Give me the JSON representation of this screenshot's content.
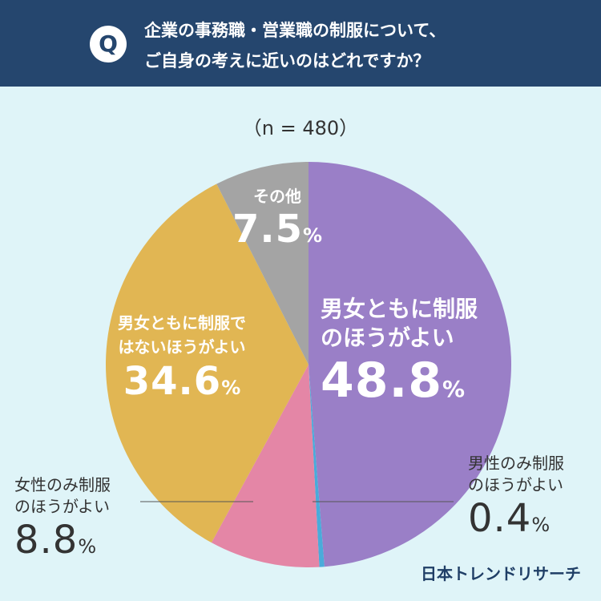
{
  "question": {
    "badge": "Q",
    "line1": "企業の事務職・営業職の制服について、",
    "line2": "ご自身の考えに近いのはどれですか？"
  },
  "sample": "（n = 480）",
  "brand": "日本トレンドリサーチ",
  "chart_data": {
    "type": "pie",
    "n": 480,
    "start": "top",
    "direction": "clockwise",
    "slices": [
      {
        "label": "男女ともに制服のほうがよい",
        "value": 48.8,
        "color": "#9a7fc7"
      },
      {
        "label": "男性のみ制服のほうがよい",
        "value": 0.4,
        "color": "#4aabda"
      },
      {
        "label": "女性のみ制服のほうがよい",
        "value": 8.8,
        "color": "#e486a6"
      },
      {
        "label": "男女ともに制服ではないほうがよい",
        "value": 34.6,
        "color": "#e1b653"
      },
      {
        "label": "その他",
        "value": 7.5,
        "color": "#a4a4a4"
      }
    ]
  },
  "labels": {
    "both": {
      "line1": "男女ともに制服",
      "line2": "のほうがよい",
      "num": "48.8",
      "unit": "%"
    },
    "men": {
      "line1": "男性のみ制服",
      "line2": "のほうがよい",
      "num": "0.4",
      "unit": "%"
    },
    "women": {
      "line1": "女性のみ制服",
      "line2": "のほうがよい",
      "num": "8.8",
      "unit": "%"
    },
    "none": {
      "line1": "男女ともに制服で",
      "line2": "はないほうがよい",
      "num": "34.6",
      "unit": "%"
    },
    "other": {
      "line1": "その他",
      "num": "7.5",
      "unit": "%"
    }
  }
}
